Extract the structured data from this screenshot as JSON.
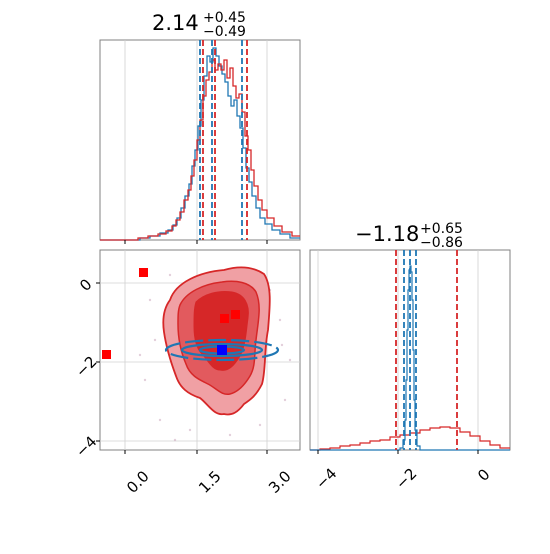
{
  "chart_data": [
    {
      "panel": "marginal-x",
      "type": "histogram",
      "title": {
        "median": "2.14",
        "plus": "+0.45",
        "minus": "−0.49"
      },
      "xlim": [
        -0.5,
        3.8
      ],
      "grid": true,
      "series": [
        {
          "color": "#1f77b4",
          "median": 2.14,
          "lo": 1.65,
          "hi": 2.59
        },
        {
          "color": "#d62728",
          "median": 2.14,
          "lo": 1.62,
          "hi": 2.68
        }
      ],
      "quantile_lines": {
        "blue": [
          1.65,
          2.14,
          2.59
        ],
        "red": [
          1.62,
          2.14,
          2.68
        ]
      }
    },
    {
      "panel": "marginal-y",
      "type": "histogram",
      "title": {
        "median": "−1.18",
        "plus": "+0.65",
        "minus": "−0.86"
      },
      "xlim": [
        -4.2,
        0.8
      ],
      "xticks": [
        "−4",
        "−2",
        "0"
      ],
      "grid": true,
      "quantile_lines": {
        "blue": [
          -1.95,
          -1.78,
          -1.6
        ],
        "red": [
          -2.04,
          -1.18,
          -0.53
        ]
      }
    },
    {
      "panel": "joint",
      "type": "scatter",
      "xlim": [
        -0.5,
        3.8
      ],
      "ylim": [
        -4.2,
        0.8
      ],
      "xticks": [
        "0.0",
        "1.5",
        "3.0"
      ],
      "yticks": [
        "0",
        "−2",
        "−4"
      ],
      "grid": true,
      "red_markers": [
        [
          -0.4,
          -1.8
        ],
        [
          0.4,
          0.3
        ],
        [
          2.1,
          -0.9
        ],
        [
          2.35,
          -0.8
        ]
      ],
      "blue_marker": [
        2.05,
        -1.7
      ]
    }
  ]
}
